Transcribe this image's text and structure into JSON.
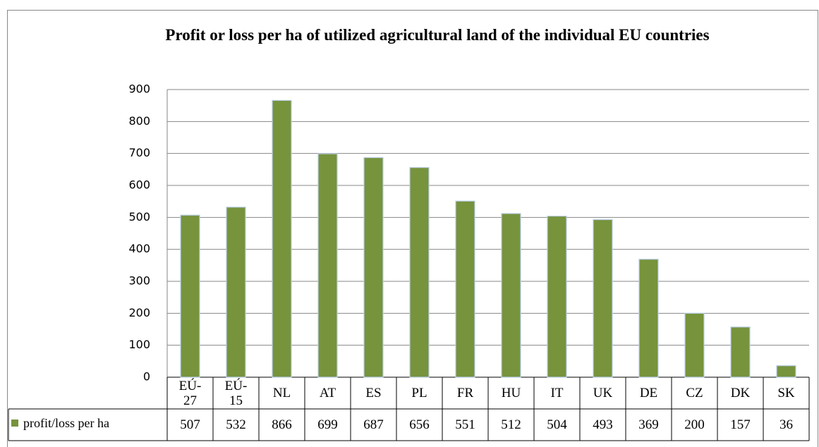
{
  "chart_data": {
    "type": "bar",
    "title": "Profit or loss per ha of utilized agricultural land of the individual EU countries",
    "categories": [
      "EÚ-27",
      "EÚ-15",
      "NL",
      "AT",
      "ES",
      "PL",
      "FR",
      "HU",
      "IT",
      "UK",
      "DE",
      "CZ",
      "DK",
      "SK"
    ],
    "series": [
      {
        "name": "profit/loss per ha",
        "color": "#77933c",
        "values": [
          507,
          532,
          866,
          699,
          687,
          656,
          551,
          512,
          504,
          493,
          369,
          200,
          157,
          36
        ]
      }
    ],
    "ylim": [
      0,
      900
    ],
    "yticks": [
      0,
      100,
      200,
      300,
      400,
      500,
      600,
      700,
      800,
      900
    ],
    "grid": true
  }
}
